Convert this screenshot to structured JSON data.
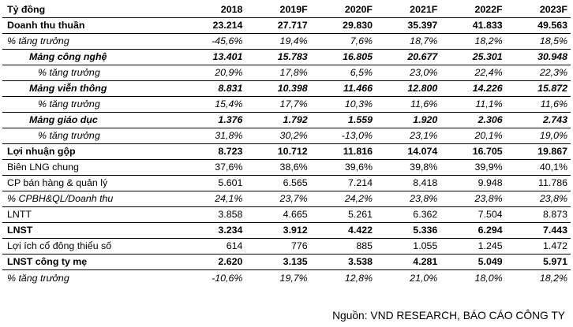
{
  "table": {
    "headers": [
      "Tỷ đồng",
      "2018",
      "2019F",
      "2020F",
      "2021F",
      "2022F",
      "2023F"
    ],
    "rows": [
      {
        "label": "Doanh thu thuần",
        "style": "bold",
        "values": [
          "23.214",
          "27.717",
          "29.830",
          "35.397",
          "41.833",
          "49.563"
        ]
      },
      {
        "label": "% tăng trưởng",
        "style": "italic",
        "values": [
          "-45,6%",
          "19,4%",
          "7,6%",
          "18,7%",
          "18,2%",
          "18,5%"
        ]
      },
      {
        "label": "Mảng công nghệ",
        "style": "bolditalic segment",
        "values": [
          "13.401",
          "15.783",
          "16.805",
          "20.677",
          "25.301",
          "30.948"
        ]
      },
      {
        "label": "% tăng trưởng",
        "style": "italic subgrowth",
        "values": [
          "20,9%",
          "17,8%",
          "6,5%",
          "23,0%",
          "22,4%",
          "22,3%"
        ]
      },
      {
        "label": "Mảng viễn thông",
        "style": "bolditalic segment",
        "values": [
          "8.831",
          "10.398",
          "11.466",
          "12.800",
          "14.226",
          "15.872"
        ]
      },
      {
        "label": "% tăng trưởng",
        "style": "italic subgrowth",
        "values": [
          "15,4%",
          "17,7%",
          "10,3%",
          "11,6%",
          "11,1%",
          "11,6%"
        ]
      },
      {
        "label": "Mảng giáo dục",
        "style": "bolditalic segment",
        "values": [
          "1.376",
          "1.792",
          "1.559",
          "1.920",
          "2.306",
          "2.743"
        ]
      },
      {
        "label": "% tăng trưởng",
        "style": "italic subgrowth",
        "values": [
          "31,8%",
          "30,2%",
          "-13,0%",
          "23,1%",
          "20,1%",
          "19,0%"
        ]
      },
      {
        "label": "Lợi nhuận gộp",
        "style": "bold",
        "values": [
          "8.723",
          "10.712",
          "11.816",
          "14.074",
          "16.705",
          "19.867"
        ]
      },
      {
        "label": "Biên LNG chung",
        "style": "plain",
        "values": [
          "37,6%",
          "38,6%",
          "39,6%",
          "39,8%",
          "39,9%",
          "40,1%"
        ]
      },
      {
        "label": "CP bán hàng & quản lý",
        "style": "plain",
        "values": [
          "5.601",
          "6.565",
          "7.214",
          "8.418",
          "9.948",
          "11.786"
        ]
      },
      {
        "label": "% CPBH&QL/Doanh thu",
        "style": "italic",
        "values": [
          "24,1%",
          "23,7%",
          "24,2%",
          "23,8%",
          "23,8%",
          "23,8%"
        ]
      },
      {
        "label": "LNTT",
        "style": "plain",
        "values": [
          "3.858",
          "4.665",
          "5.261",
          "6.362",
          "7.504",
          "8.873"
        ]
      },
      {
        "label": "LNST",
        "style": "bold",
        "values": [
          "3.234",
          "3.912",
          "4.422",
          "5.336",
          "6.294",
          "7.443"
        ]
      },
      {
        "label": "Lợi ích cổ đông thiểu số",
        "style": "plain",
        "values": [
          "614",
          "776",
          "885",
          "1.055",
          "1.245",
          "1.472"
        ]
      },
      {
        "label": "LNST công ty mẹ",
        "style": "bold",
        "values": [
          "2.620",
          "3.135",
          "3.538",
          "4.281",
          "5.049",
          "5.971"
        ]
      },
      {
        "label": "% tăng trưởng",
        "style": "italic",
        "values": [
          "-10,6%",
          "19,7%",
          "12,8%",
          "21,0%",
          "18,0%",
          "18,2%"
        ]
      }
    ]
  },
  "source": "Nguồn: VND RESEARCH, BÁO CÁO CÔNG TY"
}
